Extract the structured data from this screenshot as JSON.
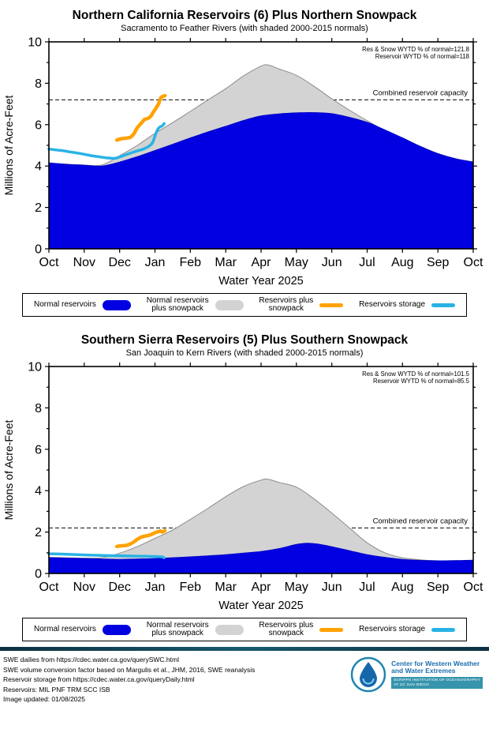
{
  "chart_data": [
    {
      "type": "area",
      "title": "Northern California Reservoirs (6) Plus Northern Snowpack",
      "subtitle": "Sacramento to Feather Rivers (with shaded 2000-2015 normals)",
      "xlabel": "Water Year 2025",
      "ylabel": "Millions of Acre-Feet",
      "ylim": [
        0,
        10
      ],
      "yticks": [
        0,
        2,
        4,
        6,
        8,
        10
      ],
      "xtick_labels": [
        "Oct",
        "Nov",
        "Dec",
        "Jan",
        "Feb",
        "Mar",
        "Apr",
        "May",
        "Jun",
        "Jul",
        "Aug",
        "Sep",
        "Oct"
      ],
      "x_units": "months_since_Oct_1",
      "annotations": [
        "Res & Snow WYTD % of normal=121.8",
        "Reservoir WYTD % of normal=118"
      ],
      "capacity": {
        "label": "Combined reservoir capacity",
        "value": 7.2
      },
      "series": [
        {
          "name": "Normal reservoirs plus snowpack",
          "style": "area",
          "smooth": true,
          "color": "#d3d3d3",
          "edge": "#8c8c8c",
          "x": [
            0,
            0.5,
            1,
            1.5,
            2,
            2.5,
            3,
            3.5,
            4,
            4.5,
            5,
            5.5,
            6,
            6.2,
            6.5,
            7,
            7.5,
            8,
            8.5,
            9,
            9.5,
            10,
            10.5,
            11,
            11.5,
            12
          ],
          "values": [
            4.15,
            4.09,
            4.05,
            4.05,
            4.5,
            5.0,
            5.58,
            6.1,
            6.64,
            7.2,
            7.74,
            8.35,
            8.83,
            8.88,
            8.7,
            8.38,
            7.85,
            7.25,
            6.7,
            6.19,
            5.72,
            5.36,
            4.95,
            4.6,
            4.35,
            4.19
          ]
        },
        {
          "name": "Normal reservoirs",
          "style": "area",
          "smooth": true,
          "color": "#0000e0",
          "edge": "#0000c8",
          "x": [
            0,
            0.5,
            1,
            1.5,
            2,
            2.5,
            3,
            3.5,
            4,
            4.5,
            5,
            5.5,
            6,
            6.5,
            7,
            7.5,
            8,
            8.5,
            9,
            9.5,
            10,
            10.5,
            11,
            11.5,
            12
          ],
          "values": [
            4.15,
            4.08,
            4.04,
            4.0,
            4.19,
            4.45,
            4.75,
            5.05,
            5.36,
            5.65,
            5.92,
            6.2,
            6.42,
            6.52,
            6.57,
            6.58,
            6.53,
            6.35,
            6.11,
            5.75,
            5.36,
            4.95,
            4.6,
            4.35,
            4.19
          ]
        },
        {
          "name": "Reservoirs plus snowpack",
          "style": "line",
          "smooth": false,
          "color": "#ffa200",
          "width": 4.5,
          "x": [
            1.92,
            2.0,
            2.05,
            2.1,
            2.2,
            2.3,
            2.35,
            2.4,
            2.45,
            2.5,
            2.55,
            2.6,
            2.65,
            2.7,
            2.8,
            2.85,
            2.9,
            2.95,
            3.0,
            3.05,
            3.1,
            3.15,
            3.2,
            3.28
          ],
          "values": [
            5.25,
            5.3,
            5.32,
            5.33,
            5.35,
            5.38,
            5.45,
            5.55,
            5.7,
            5.85,
            5.95,
            6.05,
            6.15,
            6.25,
            6.3,
            6.35,
            6.45,
            6.6,
            6.72,
            6.85,
            7.0,
            7.25,
            7.35,
            7.4
          ]
        },
        {
          "name": "Reservoirs storage",
          "style": "line",
          "smooth": false,
          "color": "#29b2e5",
          "width": 3.5,
          "x": [
            0,
            0.2,
            0.4,
            0.6,
            0.8,
            1.0,
            1.2,
            1.4,
            1.6,
            1.8,
            1.9,
            2.0,
            2.1,
            2.2,
            2.3,
            2.4,
            2.5,
            2.6,
            2.7,
            2.8,
            2.9,
            2.95,
            3.0,
            3.05,
            3.1,
            3.15,
            3.2,
            3.26
          ],
          "values": [
            4.82,
            4.78,
            4.74,
            4.68,
            4.63,
            4.57,
            4.5,
            4.45,
            4.4,
            4.37,
            4.38,
            4.44,
            4.5,
            4.56,
            4.62,
            4.68,
            4.73,
            4.78,
            4.84,
            4.92,
            5.05,
            5.2,
            5.45,
            5.68,
            5.83,
            5.9,
            5.93,
            6.05
          ]
        }
      ]
    },
    {
      "type": "area",
      "title": "Southern Sierra Reservoirs (5) Plus Southern Snowpack",
      "subtitle": "San Joaquin to Kern Rivers (with shaded 2000-2015 normals)",
      "xlabel": "Water Year 2025",
      "ylabel": "Millions of Acre-Feet",
      "ylim": [
        0,
        10
      ],
      "yticks": [
        0,
        2,
        4,
        6,
        8,
        10
      ],
      "xtick_labels": [
        "Oct",
        "Nov",
        "Dec",
        "Jan",
        "Feb",
        "Mar",
        "Apr",
        "May",
        "Jun",
        "Jul",
        "Aug",
        "Sep",
        "Oct"
      ],
      "x_units": "months_since_Oct_1",
      "annotations": [
        "Res & Snow WYTD % of normal=101.5",
        "Reservoir WYTD % of normal=85.5"
      ],
      "capacity": {
        "label": "Combined reservoir capacity",
        "value": 2.2
      },
      "series": [
        {
          "name": "Normal reservoirs plus snowpack",
          "style": "area",
          "smooth": true,
          "color": "#d3d3d3",
          "edge": "#8c8c8c",
          "x": [
            0,
            0.5,
            1,
            1.5,
            2,
            2.5,
            3,
            3.5,
            4,
            4.5,
            5,
            5.5,
            6,
            6.2,
            6.5,
            7,
            7.5,
            8,
            8.5,
            9,
            9.5,
            10,
            10.5,
            11,
            11.5,
            12
          ],
          "values": [
            0.78,
            0.76,
            0.74,
            0.76,
            0.98,
            1.3,
            1.7,
            2.1,
            2.61,
            3.15,
            3.71,
            4.2,
            4.51,
            4.55,
            4.4,
            4.17,
            3.6,
            2.92,
            2.2,
            1.48,
            1.0,
            0.76,
            0.66,
            0.61,
            0.62,
            0.64
          ]
        },
        {
          "name": "Normal reservoirs",
          "style": "area",
          "smooth": true,
          "color": "#0000e0",
          "edge": "#0000c8",
          "x": [
            0,
            0.5,
            1,
            1.5,
            2,
            2.5,
            3,
            3.5,
            4,
            4.5,
            5,
            5.5,
            6,
            6.5,
            7,
            7.3,
            7.6,
            8,
            8.5,
            9,
            9.5,
            10,
            10.5,
            11,
            11.5,
            12
          ],
          "values": [
            0.76,
            0.74,
            0.72,
            0.7,
            0.68,
            0.7,
            0.72,
            0.76,
            0.8,
            0.85,
            0.91,
            0.98,
            1.06,
            1.2,
            1.4,
            1.46,
            1.42,
            1.29,
            1.1,
            0.91,
            0.78,
            0.68,
            0.63,
            0.61,
            0.62,
            0.64
          ]
        },
        {
          "name": "Reservoirs plus snowpack",
          "style": "line",
          "smooth": false,
          "color": "#ffa200",
          "width": 4.5,
          "x": [
            1.92,
            2.0,
            2.1,
            2.2,
            2.3,
            2.4,
            2.5,
            2.6,
            2.7,
            2.8,
            2.9,
            3.0,
            3.05,
            3.1,
            3.15,
            3.2,
            3.28
          ],
          "values": [
            1.3,
            1.33,
            1.34,
            1.36,
            1.42,
            1.52,
            1.65,
            1.75,
            1.8,
            1.83,
            1.88,
            1.97,
            2.0,
            2.02,
            2.05,
            2.0,
            2.07
          ]
        },
        {
          "name": "Reservoirs storage",
          "style": "line",
          "smooth": false,
          "color": "#29b2e5",
          "width": 3.5,
          "x": [
            0,
            0.3,
            0.6,
            0.9,
            1.2,
            1.5,
            1.8,
            2.1,
            2.4,
            2.7,
            2.9,
            3.0,
            3.1,
            3.2,
            3.26
          ],
          "values": [
            0.95,
            0.94,
            0.92,
            0.9,
            0.88,
            0.87,
            0.86,
            0.85,
            0.84,
            0.83,
            0.82,
            0.82,
            0.81,
            0.8,
            0.76
          ]
        }
      ]
    }
  ],
  "legend": {
    "items": [
      {
        "label": "Normal reservoirs",
        "swatch": "blob",
        "color": "#0000e0"
      },
      {
        "label": "Normal reservoirs\nplus snowpack",
        "swatch": "blob",
        "color": "#d3d3d3"
      },
      {
        "label": "Reservoirs plus\nsnowpack",
        "swatch": "line",
        "color": "#ffa200"
      },
      {
        "label": "Reservoirs storage",
        "swatch": "line",
        "color": "#29b2e5"
      }
    ]
  },
  "footer": {
    "lines": [
      "SWE dailies from https://cdec.water.ca.gov/querySWC.html",
      "SWE volume conversion factor based on Margulis et al., JHM, 2016, SWE reanalysis",
      "Reservoir storage from https://cdec.water.ca.gov/queryDaily.html",
      "Reservoirs: MIL PNF TRM SCC ISB",
      "Image updated: 01/08/2025"
    ],
    "logo": {
      "org_line1": "Center for Western Weather",
      "org_line2": "and Water Extremes",
      "sub_line1": "SCRIPPS INSTITUTION OF OCEANOGRAPHY",
      "sub_line2": "AT UC SAN DIEGO"
    }
  }
}
